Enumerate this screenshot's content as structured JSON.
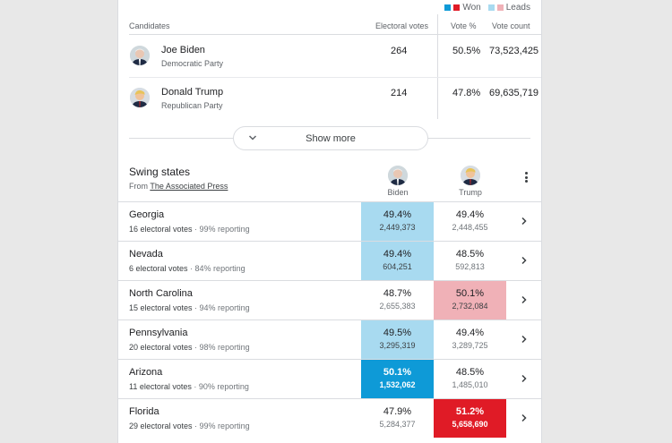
{
  "legend": {
    "won": "Won",
    "leads": "Leads"
  },
  "colors": {
    "biden_won": "#0e9ad7",
    "biden_leads": "#a8daf0",
    "trump_won": "#e01b26",
    "trump_leads": "#f0b1b7"
  },
  "candidates_table": {
    "headers": {
      "candidates": "Candidates",
      "electoral": "Electoral votes",
      "vote_pct": "Vote %",
      "vote_count": "Vote count"
    },
    "rows": [
      {
        "name": "Joe Biden",
        "party": "Democratic Party",
        "electoral": "264",
        "pct": "50.5%",
        "count": "73,523,425",
        "avatar_icon": "biden-avatar"
      },
      {
        "name": "Donald Trump",
        "party": "Republican Party",
        "electoral": "214",
        "pct": "47.8%",
        "count": "69,635,719",
        "avatar_icon": "trump-avatar"
      }
    ],
    "show_more": "Show more"
  },
  "swing": {
    "title": "Swing states",
    "from_prefix": "From",
    "source": "The Associated Press",
    "col_biden": "Biden",
    "col_trump": "Trump",
    "states": [
      {
        "name": "Georgia",
        "ev": "16 electoral votes",
        "reporting": "99% reporting",
        "b_pct": "49.4%",
        "b_cnt": "2,449,373",
        "t_pct": "49.4%",
        "t_cnt": "2,448,455",
        "b_state": "lead-b",
        "t_state": "plain"
      },
      {
        "name": "Nevada",
        "ev": "6 electoral votes",
        "reporting": "84% reporting",
        "b_pct": "49.4%",
        "b_cnt": "604,251",
        "t_pct": "48.5%",
        "t_cnt": "592,813",
        "b_state": "lead-b",
        "t_state": "plain"
      },
      {
        "name": "North Carolina",
        "ev": "15 electoral votes",
        "reporting": "94% reporting",
        "b_pct": "48.7%",
        "b_cnt": "2,655,383",
        "t_pct": "50.1%",
        "t_cnt": "2,732,084",
        "b_state": "plain",
        "t_state": "lead-t"
      },
      {
        "name": "Pennsylvania",
        "ev": "20 electoral votes",
        "reporting": "98% reporting",
        "b_pct": "49.5%",
        "b_cnt": "3,295,319",
        "t_pct": "49.4%",
        "t_cnt": "3,289,725",
        "b_state": "lead-b",
        "t_state": "plain"
      },
      {
        "name": "Arizona",
        "ev": "11 electoral votes",
        "reporting": "90% reporting",
        "b_pct": "50.1%",
        "b_cnt": "1,532,062",
        "t_pct": "48.5%",
        "t_cnt": "1,485,010",
        "b_state": "won-b",
        "t_state": "plain"
      },
      {
        "name": "Florida",
        "ev": "29 electoral votes",
        "reporting": "99% reporting",
        "b_pct": "47.9%",
        "b_cnt": "5,284,377",
        "t_pct": "51.2%",
        "t_cnt": "5,658,690",
        "b_state": "plain",
        "t_state": "won-t"
      }
    ]
  }
}
